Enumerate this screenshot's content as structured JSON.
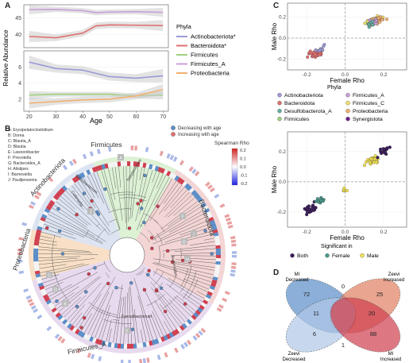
{
  "panels": {
    "a": "A",
    "b": "B",
    "c": "C",
    "d": "D"
  },
  "colors": {
    "actino": "#9c9bd6",
    "bacteroid": "#e07070",
    "firmicutes": "#9fd080",
    "firmicutes_a": "#c8a0d8",
    "proteo": "#f2b070",
    "firmC": "#f0e070",
    "desulfo": "#60b0a0",
    "synerg": "#702090",
    "both": "#3a1a5a",
    "female": "#4a9a8a",
    "male": "#f0e050",
    "mi_decreased": "#5b8ec8",
    "zeevi_increased": "#e08060",
    "zeevi_decreased": "#b0c8e8",
    "mi_increased": "#d04050"
  },
  "chart_data": [
    {
      "type": "line",
      "panel": "A",
      "xlabel": "Age",
      "ylabel": "Relative Abundance",
      "xlim": [
        18,
        72
      ],
      "x_ticks": [
        "20",
        "30",
        "40",
        "50",
        "60",
        "70"
      ],
      "legend_title": "Phyla",
      "legend": [
        {
          "label": "Actinobacteriota*",
          "color_key": "actino"
        },
        {
          "label": "Bacteroidota*",
          "color_key": "bacteroid"
        },
        {
          "label": "Firmicutes",
          "color_key": "firmicutes"
        },
        {
          "label": "Firmicutes_A",
          "color_key": "firmicutes_a"
        },
        {
          "label": "Proteobacteria",
          "color_key": "proteo"
        }
      ],
      "top": {
        "y_ticks": [
          "40",
          "45"
        ],
        "ylim": [
          36,
          49
        ],
        "series": [
          {
            "name": "Firmicutes_A",
            "color_key": "firmicutes_a",
            "x": [
              20,
              30,
              40,
              45,
              50,
              60,
              70
            ],
            "y": [
              47.5,
              47.6,
              47.2,
              46.6,
              46.8,
              46.9,
              46.7
            ],
            "band": 0.8
          },
          {
            "name": "Bacteroidota*",
            "color_key": "bacteroid",
            "x": [
              20,
              30,
              40,
              45,
              50,
              60,
              70
            ],
            "y": [
              39.4,
              39.0,
              40.4,
              42.6,
              42.9,
              42.8,
              42.7
            ],
            "band": 1.0
          }
        ]
      },
      "bottom": {
        "y_ticks": [
          "2",
          "4",
          "6"
        ],
        "ylim": [
          0.5,
          8
        ],
        "series": [
          {
            "name": "Actinobacteriota*",
            "color_key": "actino",
            "x": [
              20,
              30,
              40,
              50,
              60,
              70
            ],
            "y": [
              6.6,
              5.8,
              5.6,
              4.8,
              4.6,
              4.9
            ],
            "band": 0.5
          },
          {
            "name": "Firmicutes",
            "color_key": "firmicutes",
            "x": [
              20,
              30,
              40,
              50,
              60,
              70
            ],
            "y": [
              2.5,
              2.6,
              2.6,
              2.6,
              2.4,
              2.5
            ],
            "band": 0.3
          },
          {
            "name": "Proteobacteria",
            "color_key": "proteo",
            "x": [
              20,
              30,
              40,
              50,
              60,
              70
            ],
            "y": [
              1.5,
              1.7,
              1.9,
              2.0,
              2.4,
              3.2
            ],
            "band": 0.4
          }
        ]
      }
    },
    {
      "type": "tree",
      "panel": "B",
      "abbreviations": [
        "A: Erysipelatoclostridium",
        "B: Dorea",
        "C: Blautia_A",
        "D: Blautia",
        "E: Lawsonibacter",
        "F: Prevotella",
        "G: Bacteroides_A",
        "H: Alistipes",
        "I: Barnesiella",
        "J: Paulijensenia"
      ],
      "legend": [
        {
          "label": "Decreasing with age",
          "color_key": "mi_decreased"
        },
        {
          "label": "Increasing with age",
          "color_key": "bacteroid"
        }
      ],
      "colorbar": {
        "title": "Spearman Rho",
        "ticks": [
          "0.2",
          "0.1",
          "0.0",
          "-0.1",
          "-0.2"
        ]
      },
      "clades": [
        {
          "label": "Firmicutes",
          "from": -110,
          "to": -60,
          "color": "#d9efd0"
        },
        {
          "label": "Bacteroidota",
          "from": -60,
          "to": 30,
          "color": "#f2d0d0"
        },
        {
          "label": "Firmicutes_A",
          "from": 30,
          "to": 165,
          "color": "#e5d6ec"
        },
        {
          "label": "Proteobacteria",
          "from": 165,
          "to": 195,
          "color": "#f7dcc0"
        },
        {
          "label": "Actinobacteriota",
          "from": 195,
          "to": 250,
          "color": "#d8e0f0"
        }
      ],
      "inner_labels": [
        "Streptococcus",
        "Bifidobacterium",
        "Collinsella",
        "Bacteroides",
        "Faecalibacterium"
      ],
      "letters": [
        "A",
        "B",
        "C",
        "D",
        "E",
        "F",
        "G",
        "H",
        "I",
        "J"
      ]
    },
    {
      "type": "scatter",
      "panel": "C-top",
      "xlabel": "Female Rho",
      "ylabel": "Male Rho",
      "xlim": [
        -0.3,
        0.32
      ],
      "ylim": [
        -0.3,
        0.33
      ],
      "x_ticks": [
        "-0.2",
        "0.0",
        "0.2"
      ],
      "y_ticks": [
        "-0.2",
        "0.0",
        "0.2"
      ],
      "legend_title": "Phyla",
      "legend": [
        {
          "label": "Actinobacteriota",
          "color_key": "actino"
        },
        {
          "label": "Bacteroidota",
          "color_key": "bacteroid"
        },
        {
          "label": "Desulfobacterota_A",
          "color_key": "desulfo"
        },
        {
          "label": "Firmicutes",
          "color_key": "firmicutes"
        },
        {
          "label": "Firmicutes_A",
          "color_key": "firmicutes_a"
        },
        {
          "label": "Firmicutes_C",
          "color_key": "firmC"
        },
        {
          "label": "Proteobacteria",
          "color_key": "proteo"
        },
        {
          "label": "Synergistota",
          "color_key": "synerg"
        }
      ]
    },
    {
      "type": "scatter",
      "panel": "C-bottom",
      "xlabel": "Female Rho",
      "ylabel": "Male Rho",
      "xlim": [
        -0.3,
        0.32
      ],
      "ylim": [
        -0.3,
        0.33
      ],
      "x_ticks": [
        "-0.2",
        "0.0",
        "0.2"
      ],
      "y_ticks": [
        "-0.2",
        "0.0",
        "0.2"
      ],
      "legend_title": "Significant in",
      "legend": [
        {
          "label": "Both",
          "color_key": "both"
        },
        {
          "label": "Female",
          "color_key": "female"
        },
        {
          "label": "Male",
          "color_key": "male"
        }
      ]
    },
    {
      "type": "venn",
      "panel": "D",
      "sets": [
        {
          "label": "MI Decreased",
          "color_key": "mi_decreased"
        },
        {
          "label": "Zeevi Increased",
          "color_key": "zeevi_increased"
        },
        {
          "label": "Zeevi Decreased",
          "color_key": "zeevi_decreased"
        },
        {
          "label": "MI Increased",
          "color_key": "mi_increased"
        }
      ],
      "regions": [
        {
          "region": "MI Decreased only",
          "value": "72"
        },
        {
          "region": "MI Decreased & Zeevi Increased",
          "value": "0"
        },
        {
          "region": "Zeevi Increased only",
          "value": "25"
        },
        {
          "region": "MI Decreased & Zeevi Decreased",
          "value": "11"
        },
        {
          "region": "Zeevi Increased & MI Increased",
          "value": "20"
        },
        {
          "region": "Zeevi Decreased only",
          "value": "6"
        },
        {
          "region": "MI Increased only",
          "value": "88"
        },
        {
          "region": "Zeevi Decreased & MI Increased",
          "value": "1"
        }
      ]
    }
  ]
}
